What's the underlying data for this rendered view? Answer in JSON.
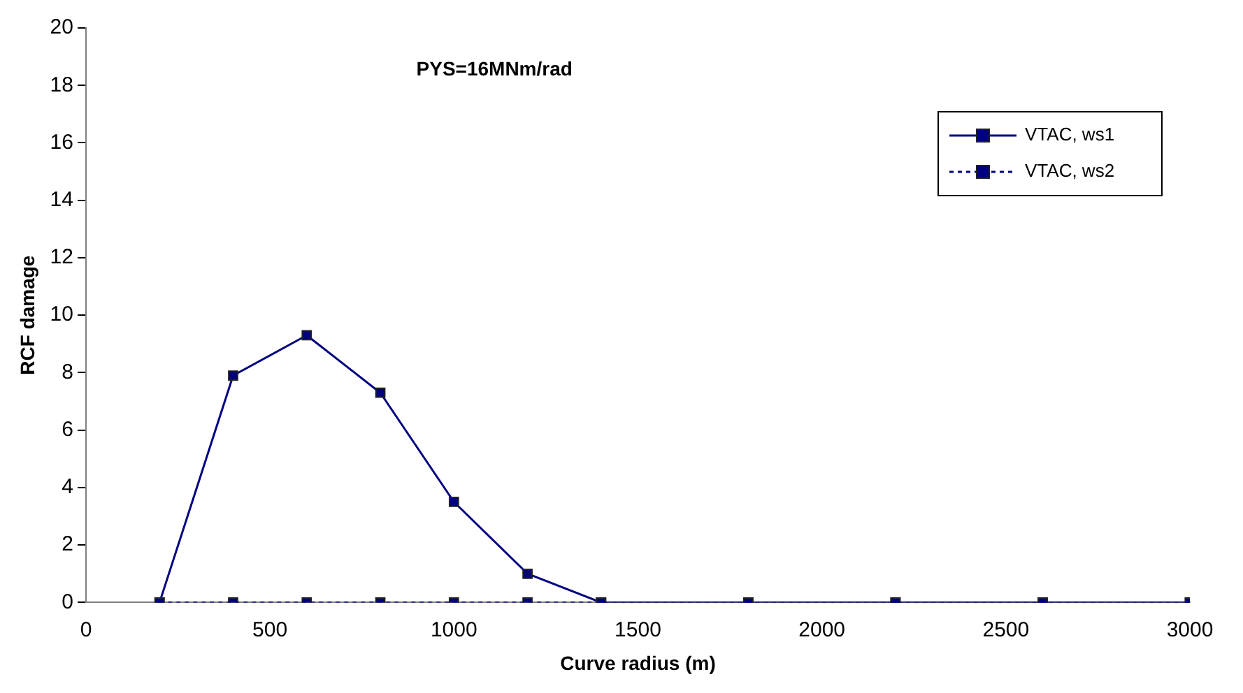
{
  "chart_data": {
    "type": "line",
    "title": "PYS=16MNm/rad",
    "xlabel": "Curve radius (m)",
    "ylabel": "RCF damage",
    "x": [
      200,
      400,
      600,
      800,
      1000,
      1200,
      1400,
      1800,
      2200,
      2600,
      3000
    ],
    "series": [
      {
        "name": "VTAC, ws1",
        "color": "#000080",
        "line_style": "solid",
        "values": [
          0,
          7.9,
          9.3,
          7.3,
          3.5,
          1.0,
          0,
          0,
          0,
          0,
          0
        ]
      },
      {
        "name": "VTAC, ws2",
        "color": "#000080",
        "line_style": "dotted",
        "values": [
          0,
          0,
          0,
          0,
          0,
          0,
          0,
          0,
          0,
          0,
          0
        ]
      }
    ],
    "xlim": [
      0,
      3000
    ],
    "xticks": [
      0,
      500,
      1000,
      1500,
      2000,
      2500,
      3000
    ],
    "ylim": [
      0,
      20
    ],
    "yticks": [
      0,
      2,
      4,
      6,
      8,
      10,
      12,
      14,
      16,
      18,
      20
    ],
    "grid": false,
    "legend": "top right",
    "marker": "square"
  }
}
